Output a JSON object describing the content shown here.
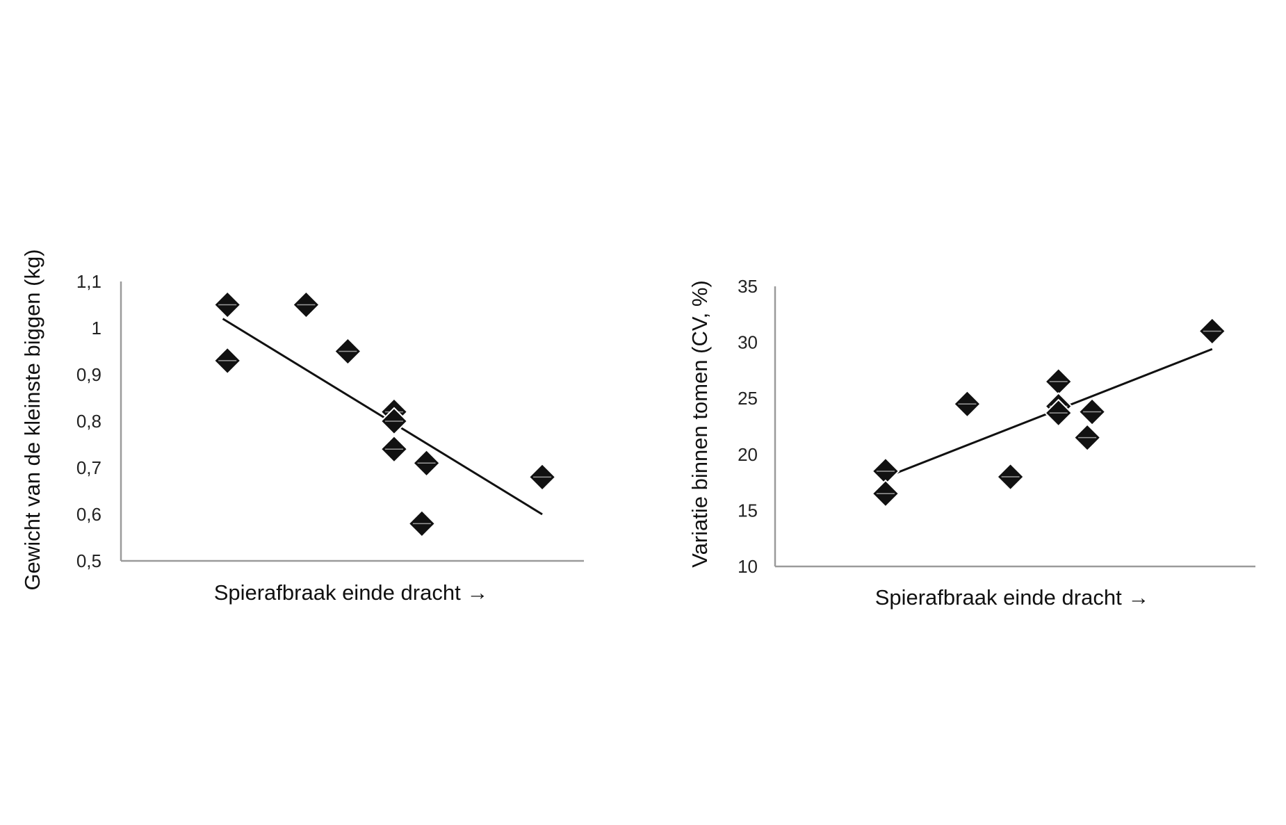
{
  "chart_data": [
    {
      "type": "scatter",
      "title": "",
      "xlabel": "Spierafbraak einde dracht →",
      "ylabel": "Gewicht van de kleinste biggen (kg)",
      "ylim": [
        0.5,
        1.1
      ],
      "yticks": [
        "0,5",
        "0,6",
        "0,7",
        "0,8",
        "0,9",
        "1",
        "1,1"
      ],
      "x_tick_labels": false,
      "grid": false,
      "legend": "none",
      "marker": "diamond",
      "marker_color": "#111111",
      "points": [
        {
          "x": 0.23,
          "y": 1.05
        },
        {
          "x": 0.23,
          "y": 0.93
        },
        {
          "x": 0.4,
          "y": 1.05
        },
        {
          "x": 0.49,
          "y": 0.95
        },
        {
          "x": 0.59,
          "y": 0.82
        },
        {
          "x": 0.59,
          "y": 0.8
        },
        {
          "x": 0.59,
          "y": 0.74
        },
        {
          "x": 0.65,
          "y": 0.58
        },
        {
          "x": 0.66,
          "y": 0.71
        },
        {
          "x": 0.91,
          "y": 0.68
        }
      ],
      "trendline": {
        "x": [
          0.22,
          0.91
        ],
        "y": [
          1.02,
          0.6
        ]
      }
    },
    {
      "type": "scatter",
      "title": "",
      "xlabel": "Spierafbraak einde dracht →",
      "ylabel": "Variatie binnen tomen (CV, %)",
      "ylim": [
        10,
        35
      ],
      "yticks": [
        "10",
        "15",
        "20",
        "25",
        "30",
        "35"
      ],
      "x_tick_labels": false,
      "grid": false,
      "legend": "none",
      "marker": "diamond",
      "marker_color": "#111111",
      "points": [
        {
          "x": 0.23,
          "y": 18.5
        },
        {
          "x": 0.23,
          "y": 16.5
        },
        {
          "x": 0.4,
          "y": 24.5
        },
        {
          "x": 0.49,
          "y": 18.0
        },
        {
          "x": 0.59,
          "y": 26.5
        },
        {
          "x": 0.59,
          "y": 24.3
        },
        {
          "x": 0.59,
          "y": 23.7
        },
        {
          "x": 0.65,
          "y": 21.5
        },
        {
          "x": 0.66,
          "y": 23.8
        },
        {
          "x": 0.91,
          "y": 31.0
        }
      ],
      "trendline": {
        "x": [
          0.22,
          0.91
        ],
        "y": [
          17.8,
          29.4
        ]
      }
    }
  ]
}
